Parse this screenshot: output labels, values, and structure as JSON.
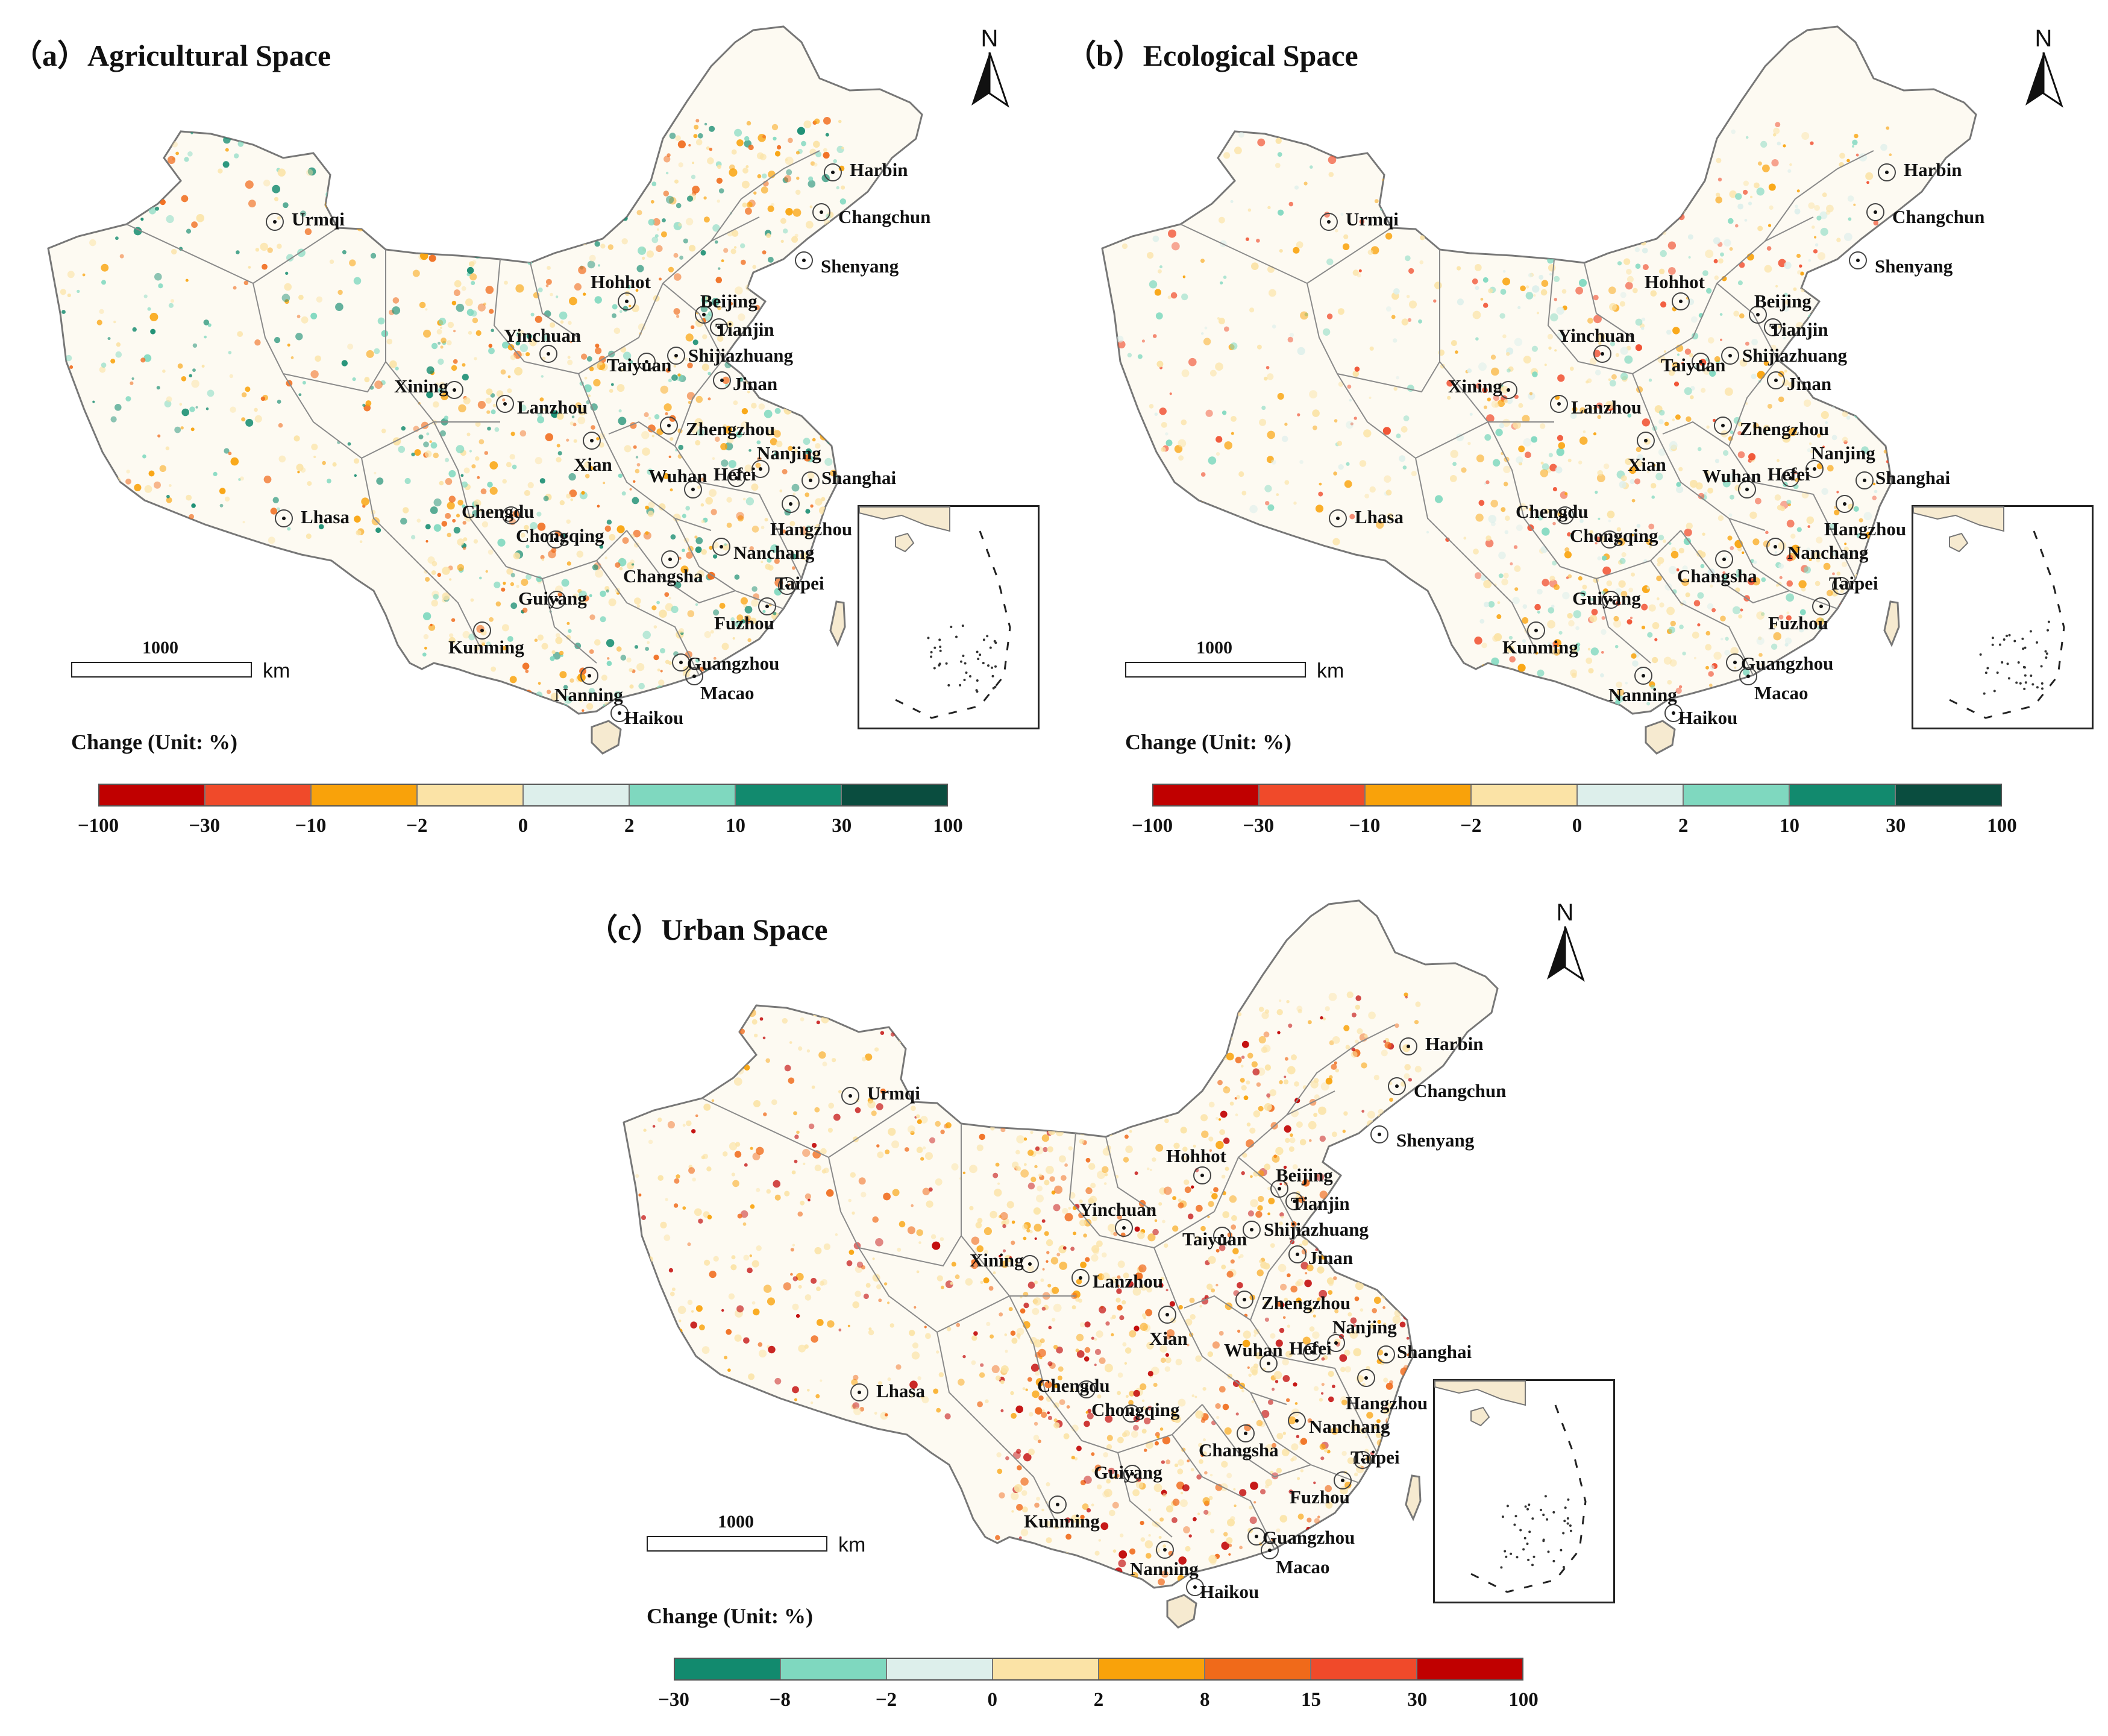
{
  "panels": {
    "a": {
      "title": "（a）Agricultural Space",
      "north_label": "N",
      "scale_value": "1000",
      "scale_unit": "km",
      "legend_title": "Change  (Unit: %)",
      "legend_ticks": [
        "−100",
        "−30",
        "−10",
        "−2",
        "0",
        "2",
        "10",
        "30",
        "100"
      ],
      "legend_colors": [
        "#c00000",
        "#f04a2a",
        "#f9a20a",
        "#fbe3a6",
        "#ddefeb",
        "#7fd8bf",
        "#128a6e",
        "#0a4d3f"
      ],
      "cities": [
        "Harbin",
        "Urmqi",
        "Changchun",
        "Shenyang",
        "Hohhot",
        "Beijing",
        "Tianjin",
        "Yinchuan",
        "Shijiazhuang",
        "Xining",
        "Taiyuan",
        "Jinan",
        "Lanzhou",
        "Zhengzhou",
        "Xian",
        "Nanjing",
        "Wuhan",
        "Hefei",
        "Shanghai",
        "Lhasa",
        "Chengdu",
        "Hangzhou",
        "Chongqing",
        "Nanchang",
        "Changsha",
        "Taipei",
        "Guiyang",
        "Fuzhou",
        "Kunming",
        "Guangzhou",
        "Macao",
        "Nanning",
        "Haikou"
      ]
    },
    "b": {
      "title": "（b）Ecological Space",
      "north_label": "N",
      "scale_value": "1000",
      "scale_unit": "km",
      "legend_title": "Change  (Unit: %)",
      "legend_ticks": [
        "−100",
        "−30",
        "−10",
        "−2",
        "0",
        "2",
        "10",
        "30",
        "100"
      ],
      "legend_colors": [
        "#c00000",
        "#f04a2a",
        "#f9a20a",
        "#fbe3a6",
        "#ddefeb",
        "#7fd8bf",
        "#128a6e",
        "#0a4d3f"
      ],
      "cities": [
        "Harbin",
        "Urmqi",
        "Changchun",
        "Shenyang",
        "Hohhot",
        "Beijing",
        "Tianjin",
        "Yinchuan",
        "Shijiazhuang",
        "Xining",
        "Taiyuan",
        "Jinan",
        "Lanzhou",
        "Zhengzhou",
        "Xian",
        "Nanjing",
        "Wuhan",
        "Hefei",
        "Shanghai",
        "Lhasa",
        "Chengdu",
        "Hangzhou",
        "Chongqing",
        "Nanchang",
        "Changsha",
        "Taipei",
        "Guiyang",
        "Fuzhou",
        "Kunming",
        "Guangzhou",
        "Macao",
        "Nanning",
        "Haikou"
      ]
    },
    "c": {
      "title": "（c）Urban Space",
      "north_label": "N",
      "scale_value": "1000",
      "scale_unit": "km",
      "legend_title": "Change  (Unit: %)",
      "legend_ticks": [
        "−30",
        "−8",
        "−2",
        "0",
        "2",
        "8",
        "15",
        "30",
        "100"
      ],
      "legend_colors": [
        "#128a6e",
        "#7fd8bf",
        "#ddefeb",
        "#fbe3a6",
        "#f9a20a",
        "#f06a1a",
        "#f04a2a",
        "#c00000"
      ],
      "cities": [
        "Harbin",
        "Urmqi",
        "Changchun",
        "Shenyang",
        "Hohhot",
        "Beijing",
        "Tianjin",
        "Yinchuan",
        "Shijiazhuang",
        "Xining",
        "Taiyuan",
        "Jinan",
        "Lanzhou",
        "Zhengzhou",
        "Xian",
        "Nanjing",
        "Wuhan",
        "Hefei",
        "Shanghai",
        "Lhasa",
        "Chengdu",
        "Hangzhou",
        "Chongqing",
        "Nanchang",
        "Changsha",
        "Taipei",
        "Guiyang",
        "Fuzhou",
        "Kunming",
        "Guangzhou",
        "Macao",
        "Nanning",
        "Haikou"
      ]
    }
  }
}
